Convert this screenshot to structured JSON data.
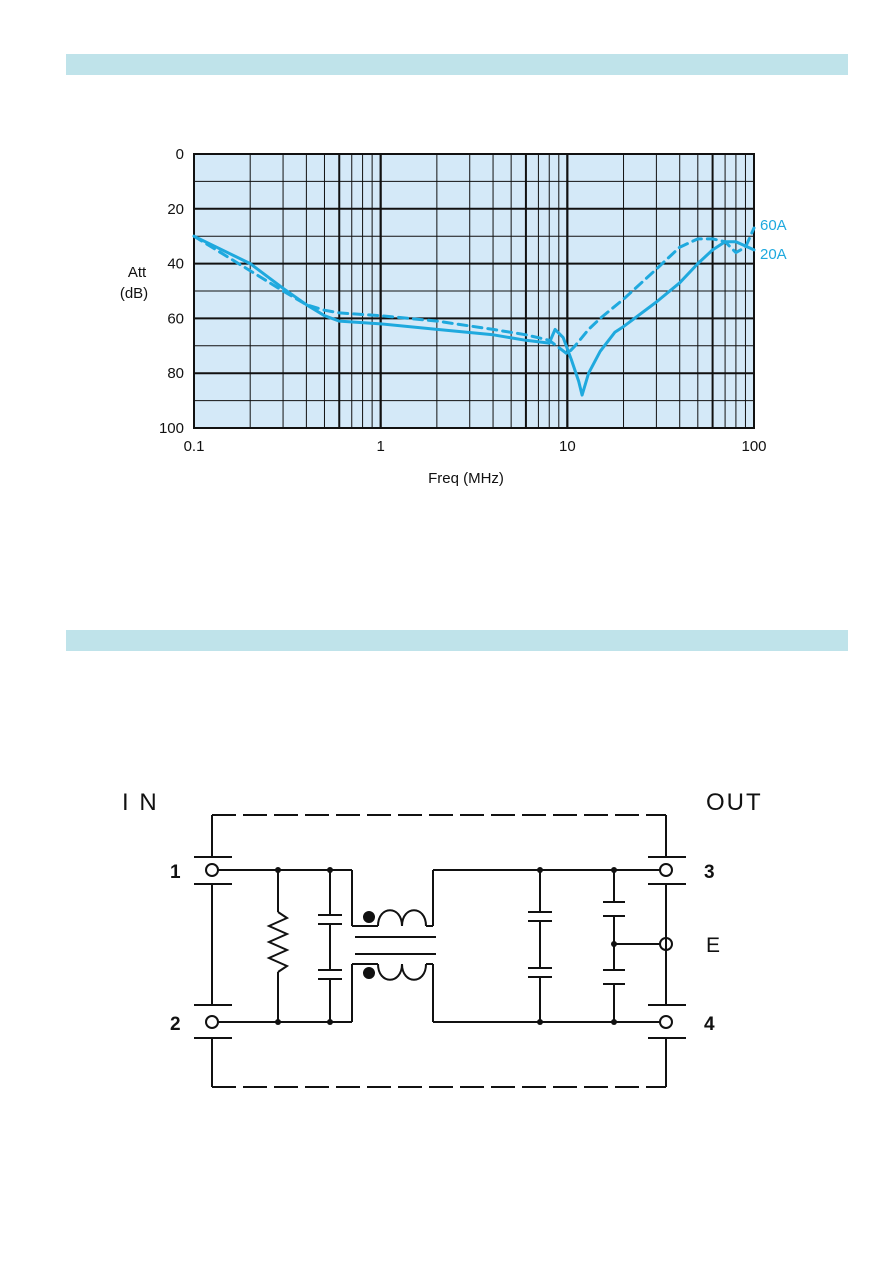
{
  "colors": {
    "band": "#bfe3ea",
    "plot_bg": "#d4e9f8",
    "curve": "#1fa9de",
    "ink": "#111111"
  },
  "chart_data": {
    "type": "line",
    "title": "",
    "xlabel": "Freq (MHz)",
    "ylabel_line1": "Att",
    "ylabel_line2": "(dB)",
    "x_scale": "log",
    "xlim": [
      0.1,
      100
    ],
    "ylim": [
      0,
      100
    ],
    "y_inverted": true,
    "grid": true,
    "x_ticks": [
      0.1,
      1,
      10,
      100
    ],
    "x_tick_labels": [
      "0.1",
      "1",
      "10",
      "100"
    ],
    "y_ticks": [
      0,
      20,
      40,
      60,
      80,
      100
    ],
    "y_tick_labels": [
      "0",
      "20",
      "40",
      "60",
      "80",
      "100"
    ],
    "series": [
      {
        "name": "20A",
        "style": "solid",
        "x": [
          0.1,
          0.2,
          0.3,
          0.4,
          0.5,
          0.6,
          1,
          2,
          4,
          6,
          8,
          8.6,
          9.5,
          10.5,
          11.5,
          12,
          13,
          15,
          18,
          20,
          30,
          40,
          50,
          60,
          70,
          80,
          100
        ],
        "y": [
          30,
          40,
          49,
          55,
          59,
          61,
          62,
          64,
          66,
          68,
          69,
          64,
          67,
          75,
          83,
          88,
          80,
          72,
          65,
          63,
          54,
          47,
          40,
          35,
          32,
          32,
          35
        ]
      },
      {
        "name": "60A",
        "style": "dashed",
        "x": [
          0.1,
          0.3,
          0.4,
          0.5,
          0.6,
          1,
          2,
          4,
          6,
          8,
          10,
          11,
          13,
          15,
          20,
          30,
          40,
          50,
          60,
          70,
          80,
          90,
          100
        ],
        "y": [
          30,
          50,
          55,
          57,
          58,
          59,
          61,
          64,
          66,
          68,
          73,
          70,
          64,
          60,
          53,
          42,
          34,
          31,
          31,
          32,
          36,
          34,
          27
        ]
      }
    ]
  },
  "schematic": {
    "in_label": "I N",
    "out_label": "OUT",
    "pins": [
      "1",
      "2",
      "3",
      "4"
    ],
    "earth_label": "E"
  }
}
